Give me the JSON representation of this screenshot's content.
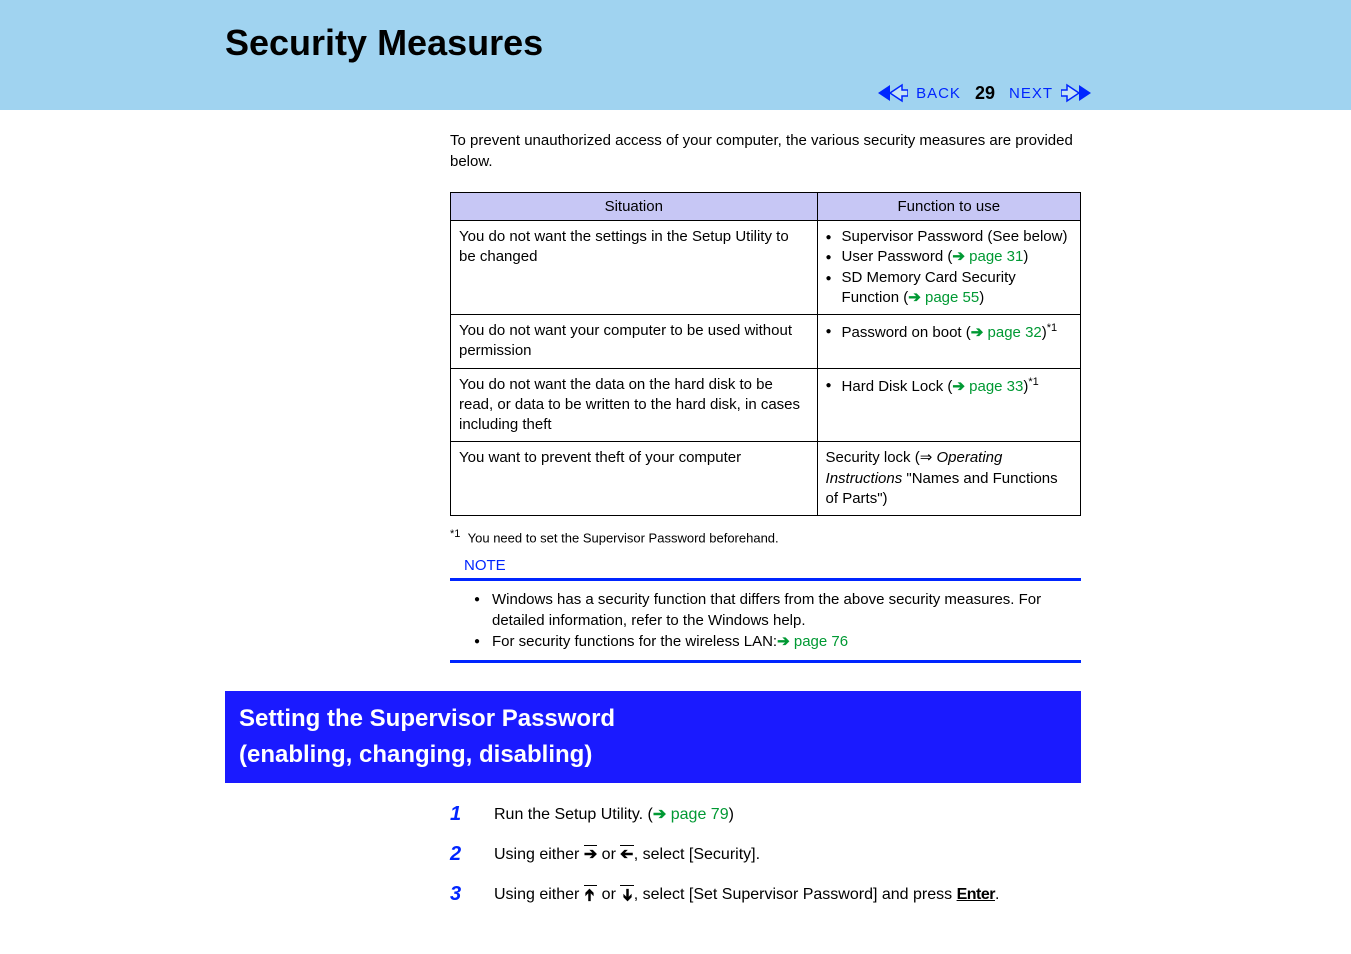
{
  "header": {
    "title": "Security Measures",
    "nav": {
      "back_label": "BACK",
      "next_label": "NEXT",
      "page_number": "29"
    }
  },
  "colors": {
    "header_bg": "#a0d3f0",
    "section_bg": "#1a1aff",
    "table_header_bg": "#c7c7f5",
    "link_green": "#009933",
    "blue": "#0025ff"
  },
  "intro": "To prevent unauthorized access of your computer, the various security measures are provided below.",
  "table": {
    "headers": [
      "Situation",
      "Function to use"
    ],
    "rows": [
      {
        "situation": "You do not want the settings in the Setup Utility to be changed",
        "functions": [
          {
            "pre": "Supervisor Password (See below)",
            "link": null,
            "suf": null
          },
          {
            "pre": "User Password (",
            "link": "page 31",
            "suf": ")"
          },
          {
            "pre": "SD Memory Card Security Function (",
            "link": "page 55",
            "suf": ")"
          }
        ]
      },
      {
        "situation": "You do not want your computer to be used without permission",
        "functions": [
          {
            "pre": "Password on boot (",
            "link": "page 32",
            "suf": ")",
            "sup": "*1"
          }
        ]
      },
      {
        "situation": "You do not want the data on the hard disk to be read, or data to be written to the hard disk, in cases including theft",
        "functions": [
          {
            "pre": "Hard Disk Lock (",
            "link": "page 33",
            "suf": ")",
            "sup": "*1"
          }
        ]
      },
      {
        "situation": "You want to prevent theft of your computer",
        "plain_html": "Security lock (⇒ <span class='italic'>Operating Instructions</span> \"Names and Functions of Parts\")"
      }
    ]
  },
  "footnote": {
    "mark": "*1",
    "text": "You need to set the Supervisor Password beforehand."
  },
  "note": {
    "label": "NOTE",
    "items": [
      {
        "text": "Windows has a security function that differs from the above security measures.   For detailed information, refer to the Windows help.",
        "link": null
      },
      {
        "text": "For security functions for the wireless LAN:",
        "link": "page 76"
      }
    ]
  },
  "section_title": "Setting the Supervisor Password\n(enabling, changing, disabling)",
  "steps": [
    {
      "num": "1",
      "parts": [
        {
          "t": "Run the Setup Utility. ("
        },
        {
          "arrow": true
        },
        {
          "link": "page 79"
        },
        {
          "t": ")"
        }
      ]
    },
    {
      "num": "2",
      "parts": [
        {
          "t": "Using either "
        },
        {
          "key": "right"
        },
        {
          "t": " or "
        },
        {
          "key": "left"
        },
        {
          "t": ", select [Security]."
        }
      ]
    },
    {
      "num": "3",
      "parts": [
        {
          "t": "Using either "
        },
        {
          "key": "up"
        },
        {
          "t": " or "
        },
        {
          "key": "down"
        },
        {
          "t": ", select [Set Supervisor Password] and press "
        },
        {
          "enter": true
        },
        {
          "t": "."
        }
      ]
    }
  ]
}
